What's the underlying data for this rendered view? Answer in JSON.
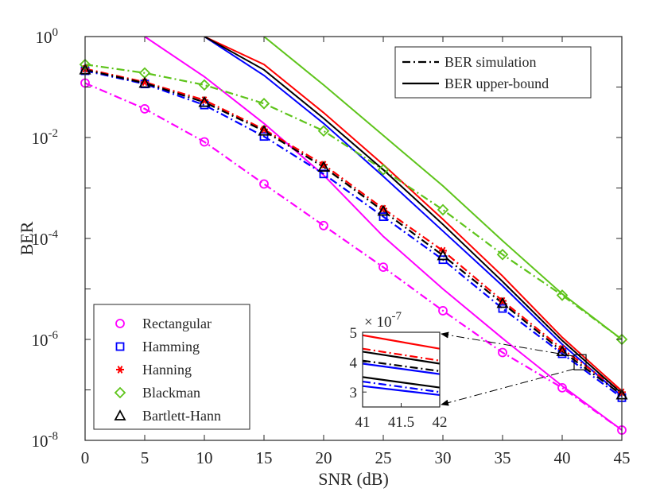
{
  "chart_data": {
    "type": "line",
    "xlabel": "SNR (dB)",
    "ylabel": "BER",
    "xlim": [
      0,
      45
    ],
    "ylim": [
      1e-08,
      1
    ],
    "yscale": "log",
    "grid": false,
    "x_ticks": [
      0,
      5,
      10,
      15,
      20,
      25,
      30,
      35,
      40,
      45
    ],
    "x_tick_labels": [
      "0",
      "5",
      "10",
      "15",
      "20",
      "25",
      "30",
      "35",
      "40",
      "45"
    ],
    "y_ticks": [
      1e-08,
      1e-06,
      0.0001,
      0.01,
      1
    ],
    "y_tick_labels": [
      {
        "base": "10",
        "exp": "-8"
      },
      {
        "base": "10",
        "exp": "-6"
      },
      {
        "base": "10",
        "exp": "-4"
      },
      {
        "base": "10",
        "exp": "-2"
      },
      {
        "base": "10",
        "exp": "0"
      }
    ],
    "style_legend": {
      "position": "top-right",
      "entries": [
        {
          "label": "BER simulation",
          "dash": "dashdot"
        },
        {
          "label": "BER upper-bound",
          "dash": "solid"
        }
      ]
    },
    "window_legend": {
      "position": "bottom-left",
      "entries": [
        "Rectangular",
        "Hamming",
        "Hanning",
        "Blackman",
        "Bartlett-Hann"
      ]
    },
    "series": [
      {
        "name": "Rectangular",
        "color": "#ff00ff",
        "marker": "circle",
        "x": [
          0,
          5,
          10,
          15,
          20,
          25,
          30,
          35,
          40,
          45
        ],
        "sim": [
          0.12,
          0.037,
          0.0082,
          0.0012,
          0.00018,
          2.7e-05,
          3.7e-06,
          5.5e-07,
          1.1e-07,
          1.6e-08
        ],
        "bound": [
          null,
          1.0,
          0.16,
          0.019,
          0.0018,
          0.00011,
          1e-05,
          1.05e-06,
          1.2e-07,
          1.6e-08
        ]
      },
      {
        "name": "Hamming",
        "color": "#0000ff",
        "marker": "square",
        "x": [
          0,
          5,
          10,
          15,
          20,
          25,
          30,
          35,
          40,
          45
        ],
        "sim": [
          0.21,
          0.115,
          0.044,
          0.0105,
          0.0019,
          0.00027,
          3.8e-05,
          4.1e-06,
          5.2e-07,
          7e-08
        ],
        "bound": [
          null,
          null,
          1.0,
          0.17,
          0.019,
          0.0017,
          0.00014,
          1.15e-05,
          8e-07,
          7.5e-08
        ]
      },
      {
        "name": "Hanning",
        "color": "#ff0000",
        "marker": "asterisk",
        "x": [
          0,
          5,
          10,
          15,
          20,
          25,
          30,
          35,
          40,
          45
        ],
        "sim": [
          0.23,
          0.125,
          0.055,
          0.0145,
          0.0029,
          0.00039,
          5.7e-05,
          5.8e-06,
          6.5e-07,
          9e-08
        ],
        "bound": [
          null,
          null,
          1.0,
          0.28,
          0.031,
          0.0029,
          0.00024,
          1.8e-05,
          1.1e-06,
          9.5e-08
        ]
      },
      {
        "name": "Blackman",
        "color": "#5ec41b",
        "marker": "diamond",
        "x": [
          0,
          5,
          10,
          15,
          20,
          25,
          30,
          35,
          40,
          45
        ],
        "sim": [
          0.28,
          0.19,
          0.11,
          0.047,
          0.0135,
          0.0023,
          0.00037,
          4.8e-05,
          7.5e-06,
          1e-06
        ],
        "bound": [
          null,
          null,
          null,
          1.0,
          0.11,
          0.011,
          0.0011,
          9e-05,
          8e-06,
          1e-06
        ]
      },
      {
        "name": "Bartlett-Hann",
        "color": "#000000",
        "marker": "triangle",
        "x": [
          0,
          5,
          10,
          15,
          20,
          25,
          30,
          35,
          40,
          45
        ],
        "sim": [
          0.22,
          0.12,
          0.05,
          0.0135,
          0.0026,
          0.00035,
          4.6e-05,
          5.2e-06,
          5.8e-07,
          8e-08
        ],
        "bound": [
          null,
          null,
          1.0,
          0.22,
          0.024,
          0.0023,
          0.00019,
          1.4e-05,
          9.5e-07,
          8.5e-08
        ]
      }
    ],
    "inset": {
      "multiplier": {
        "base": "× 10",
        "exp": "-7"
      },
      "xlim": [
        41,
        42
      ],
      "ylim": [
        2.5e-07,
        5e-07
      ],
      "x_ticks": [
        41,
        41.5,
        42
      ],
      "x_tick_labels": [
        "41",
        "41.5",
        "42"
      ],
      "y_ticks": [
        3e-07,
        4e-07,
        5e-07
      ],
      "y_tick_labels": [
        "3",
        "4",
        "5"
      ],
      "zoom_region": {
        "x": [
          41,
          42
        ],
        "y": [
          2.5e-07,
          5e-07
        ]
      },
      "lines": [
        {
          "series": "Hanning",
          "style": "solid",
          "y": [
            4.9e-07,
            4.45e-07
          ]
        },
        {
          "series": "Hanning",
          "style": "dashdot",
          "y": [
            4.45e-07,
            4.05e-07
          ]
        },
        {
          "series": "Bartlett-Hann",
          "style": "solid",
          "y": [
            4.35e-07,
            3.95e-07
          ]
        },
        {
          "series": "Bartlett-Hann",
          "style": "dashdot",
          "y": [
            4.05e-07,
            3.7e-07
          ]
        },
        {
          "series": "Hamming",
          "style": "solid",
          "y": [
            3.95e-07,
            3.6e-07
          ]
        },
        {
          "series": "Hamming",
          "style": "dashdot",
          "y": [
            3.35e-07,
            3e-07
          ]
        },
        {
          "series": "Bartlett-Hann",
          "style": "solid",
          "y": [
            3.5e-07,
            3.15e-07
          ]
        },
        {
          "series": "Hamming",
          "style": "solid",
          "y": [
            3.2e-07,
            2.9e-07
          ]
        }
      ]
    }
  }
}
